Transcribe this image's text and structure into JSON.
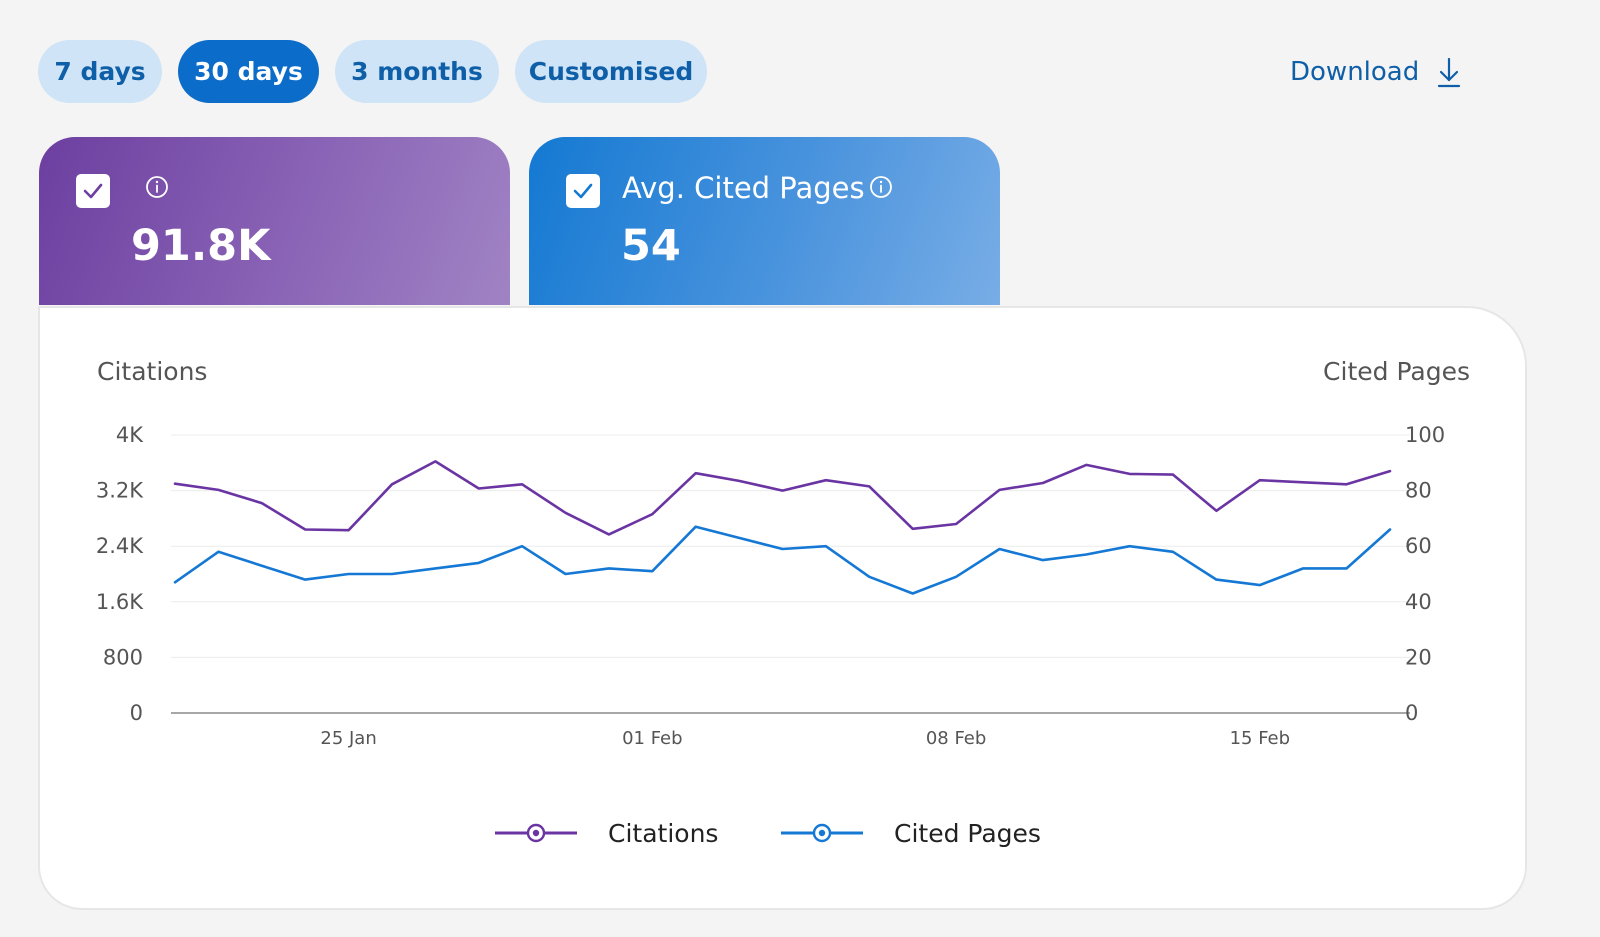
{
  "range_pills": [
    {
      "label": "7 days",
      "active": false
    },
    {
      "label": "30 days",
      "active": true
    },
    {
      "label": "3 months",
      "active": false
    },
    {
      "label": "Customised",
      "active": false
    }
  ],
  "download_label": "Download",
  "kpis": {
    "citations": {
      "label": "",
      "value": "91.8K",
      "checked": true
    },
    "cited_pages": {
      "label": "Avg. Cited Pages",
      "value": "54",
      "checked": true
    }
  },
  "colors": {
    "citations": "#6a35a3",
    "cited_pages": "#1478d4",
    "axis": "#8a8a8a",
    "grid": "#ececec"
  },
  "chart_data": {
    "type": "line",
    "left_axis_title": "Citations",
    "right_axis_title": "Cited Pages",
    "left_ylim": [
      0,
      4000
    ],
    "right_ylim": [
      0,
      100
    ],
    "left_ticks": [
      {
        "value": 0,
        "label": "0"
      },
      {
        "value": 800,
        "label": "800"
      },
      {
        "value": 1600,
        "label": "1.6K"
      },
      {
        "value": 2400,
        "label": "2.4K"
      },
      {
        "value": 3200,
        "label": "3.2K"
      },
      {
        "value": 4000,
        "label": "4K"
      }
    ],
    "right_ticks": [
      {
        "value": 0,
        "label": "0"
      },
      {
        "value": 20,
        "label": "20"
      },
      {
        "value": 40,
        "label": "40"
      },
      {
        "value": 60,
        "label": "60"
      },
      {
        "value": 80,
        "label": "80"
      },
      {
        "value": 100,
        "label": "100"
      }
    ],
    "x": [
      "21 Jan",
      "22 Jan",
      "23 Jan",
      "24 Jan",
      "25 Jan",
      "26 Jan",
      "27 Jan",
      "28 Jan",
      "29 Jan",
      "30 Jan",
      "31 Jan",
      "01 Feb",
      "02 Feb",
      "03 Feb",
      "04 Feb",
      "05 Feb",
      "06 Feb",
      "07 Feb",
      "08 Feb",
      "09 Feb",
      "10 Feb",
      "11 Feb",
      "12 Feb",
      "13 Feb",
      "14 Feb",
      "15 Feb",
      "16 Feb",
      "17 Feb",
      "18 Feb"
    ],
    "x_tick_labels": [
      {
        "index": 4,
        "label": "25 Jan"
      },
      {
        "index": 11,
        "label": "01 Feb"
      },
      {
        "index": 18,
        "label": "08 Feb"
      },
      {
        "index": 25,
        "label": "15 Feb"
      }
    ],
    "grid": true,
    "legend_position": "bottom-center",
    "series": [
      {
        "name": "Citations",
        "axis": "left",
        "values": [
          3300,
          3210,
          3020,
          2640,
          2630,
          3290,
          3620,
          3230,
          3290,
          2880,
          2570,
          2860,
          3450,
          3340,
          3200,
          3350,
          3260,
          2650,
          2720,
          3210,
          3310,
          3570,
          3440,
          3430,
          2910,
          3350,
          3320,
          3290,
          3480
        ]
      },
      {
        "name": "Cited Pages",
        "axis": "right",
        "values": [
          47,
          58,
          53,
          48,
          50,
          50,
          52,
          54,
          60,
          50,
          52,
          51,
          67,
          63,
          59,
          60,
          49,
          43,
          49,
          59,
          55,
          57,
          60,
          58,
          48,
          46,
          52,
          52,
          66
        ]
      }
    ]
  }
}
